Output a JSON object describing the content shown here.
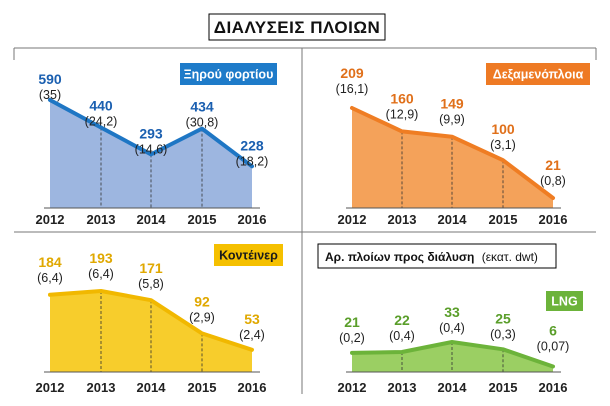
{
  "title": "ΔΙΑΛΥΣΕΙΣ ΠΛΟΙΩΝ",
  "note": {
    "main": "Αρ. πλοίων προς διάλυση",
    "unit": "(εκατ. dwt)"
  },
  "chart_data": [
    {
      "type": "area",
      "legend": "Ξηρού φορτίου",
      "categories": [
        "2012",
        "2013",
        "2014",
        "2015",
        "2016"
      ],
      "values": [
        590,
        440,
        293,
        434,
        228
      ],
      "value_labels": [
        "590",
        "440",
        "293",
        "434",
        "228"
      ],
      "dwt_labels": [
        "(35)",
        "(24,2)",
        "(14,6)",
        "(30,8)",
        "(18,2)"
      ],
      "colors": {
        "fill": "#9db6e0",
        "line": "#1e76c4",
        "label": "#1a5fb0",
        "legend_bg": "#1e7bc9",
        "legend_text": "#ffffff"
      }
    },
    {
      "type": "area",
      "legend": "Δεξαμενόπλοια",
      "categories": [
        "2012",
        "2013",
        "2014",
        "2015",
        "2016"
      ],
      "values": [
        209,
        160,
        149,
        100,
        21
      ],
      "value_labels": [
        "209",
        "160",
        "149",
        "100",
        "21"
      ],
      "dwt_labels": [
        "(16,1)",
        "(12,9)",
        "(9,9)",
        "(3,1)",
        "(0,8)"
      ],
      "colors": {
        "fill": "#f4a25a",
        "line": "#ef7d23",
        "label": "#e0701a",
        "legend_bg": "#ee7a24",
        "legend_text": "#ffffff"
      }
    },
    {
      "type": "area",
      "legend": "Κοντέινερ",
      "categories": [
        "2012",
        "2013",
        "2014",
        "2015",
        "2016"
      ],
      "values": [
        184,
        193,
        171,
        92,
        53
      ],
      "value_labels": [
        "184",
        "193",
        "171",
        "92",
        "53"
      ],
      "dwt_labels": [
        "(6,4)",
        "(6,4)",
        "(5,8)",
        "(2,9)",
        "(2,4)"
      ],
      "colors": {
        "fill": "#f7cd2c",
        "line": "#f1b800",
        "label": "#e0a800",
        "legend_bg": "#f5c000",
        "legend_text": "#1a1a1a"
      }
    },
    {
      "type": "area",
      "legend": "LNG",
      "categories": [
        "2012",
        "2013",
        "2014",
        "2015",
        "2016"
      ],
      "values": [
        21,
        22,
        33,
        25,
        6
      ],
      "value_labels": [
        "21",
        "22",
        "33",
        "25",
        "6"
      ],
      "dwt_labels": [
        "(0,2)",
        "(0,4)",
        "(0,4)",
        "(0,3)",
        "(0,07)"
      ],
      "colors": {
        "fill": "#9bcf63",
        "line": "#6cb33a",
        "label": "#5a9e2a",
        "legend_bg": "#6cb33a",
        "legend_text": "#ffffff"
      }
    }
  ]
}
